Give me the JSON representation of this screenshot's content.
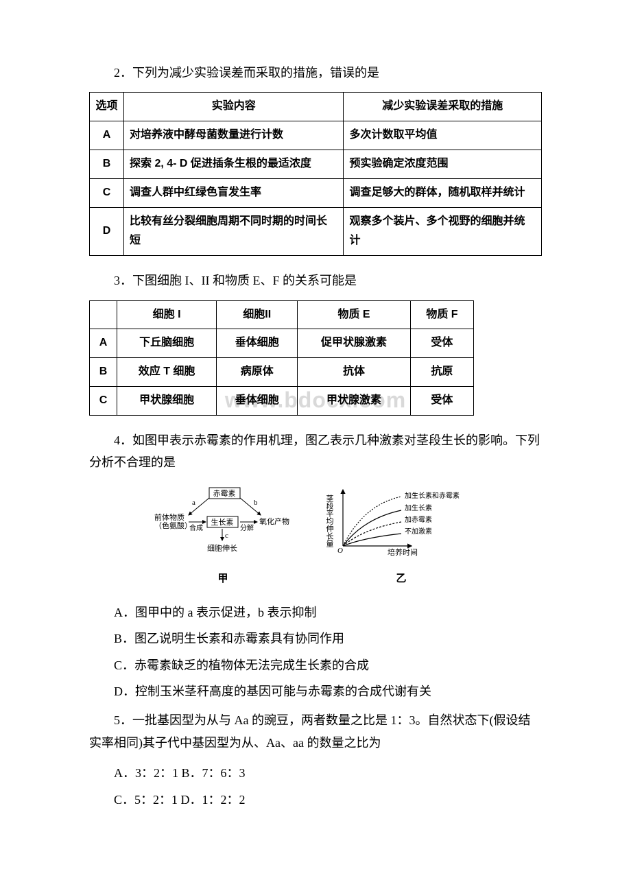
{
  "q2": {
    "text": "2．下列为减少实验误差而采取的措施，错误的是",
    "table": {
      "headers": [
        "选项",
        "实验内容",
        "减少实验误差采取的措施"
      ],
      "rows": [
        [
          "A",
          "对培养液中酵母菌数量进行计数",
          "多次计数取平均值"
        ],
        [
          "B",
          "探索 2, 4- D 促进插条生根的最适浓度",
          "预实验确定浓度范围"
        ],
        [
          "C",
          "调查人群中红绿色盲发生率",
          "调查足够大的群体，随机取样并统计"
        ],
        [
          "D",
          "比较有丝分裂细胞周期不同时期的时间长短",
          "观察多个装片、多个视野的细胞并统计"
        ]
      ]
    }
  },
  "q3": {
    "text": "3．下图细胞 I、II 和物质 E、F 的关系可能是",
    "table": {
      "headers": [
        "",
        "细胞 I",
        "细胞II",
        "物质 E",
        "物质 F"
      ],
      "rows": [
        [
          "A",
          "下丘脑细胞",
          "垂体细胞",
          "促甲状腺激素",
          "受体"
        ],
        [
          "B",
          "效应 T 细胞",
          "病原体",
          "抗体",
          "抗原"
        ],
        [
          "C",
          "甲状腺细胞",
          "垂体细胞",
          "甲状腺激素",
          "受体"
        ]
      ]
    }
  },
  "q4": {
    "text": "4．如图甲表示赤霉素的作用机理，图乙表示几种激素对茎段生长的影响。下列分析不合理的是",
    "diagram_jia": {
      "label": "甲",
      "nodes": {
        "chimeisu": "赤霉素",
        "qianti": "前体物质\n（色氨酸）",
        "shengzhangsu": "生长素",
        "yanghua": "氧化产物",
        "xibao": "细胞伸长",
        "a": "a",
        "b": "b",
        "c": "c",
        "hecheng": "合成",
        "fenjie": "分解"
      },
      "colors": {
        "text": "#000000",
        "line": "#000000"
      },
      "fontsize": 11
    },
    "diagram_yi": {
      "label": "乙",
      "ylabel": "茎段平均伸长量",
      "xlabel": "培养时间",
      "curves": [
        {
          "label": "加生长素和赤霉素",
          "dash": "2,2"
        },
        {
          "label": "加生长素",
          "dash": "0"
        },
        {
          "label": "加赤霉素",
          "dash": "3,2"
        },
        {
          "label": "不加激素",
          "dash": "0"
        }
      ],
      "colors": {
        "axis": "#000000",
        "text": "#000000",
        "line": "#000000"
      },
      "fontsize": 11
    },
    "options": [
      "A．图甲中的 a 表示促进，b 表示抑制",
      "B．图乙说明生长素和赤霉素具有协同作用",
      "C．赤霉素缺乏的植物体无法完成生长素的合成",
      "D．控制玉米茎秆高度的基因可能与赤霉素的合成代谢有关"
    ]
  },
  "q5": {
    "text": "5．一批基因型为从与 Aa 的豌豆，两者数量之比是 1：3。自然状态下(假设结实率相同)其子代中基因型为从、Aa、aa 的数量之比为",
    "options": [
      "A．3：2：1  B．7：6：3",
      "C．5：2：1  D．1：2：2"
    ]
  },
  "watermark": "www.bdocx.com"
}
